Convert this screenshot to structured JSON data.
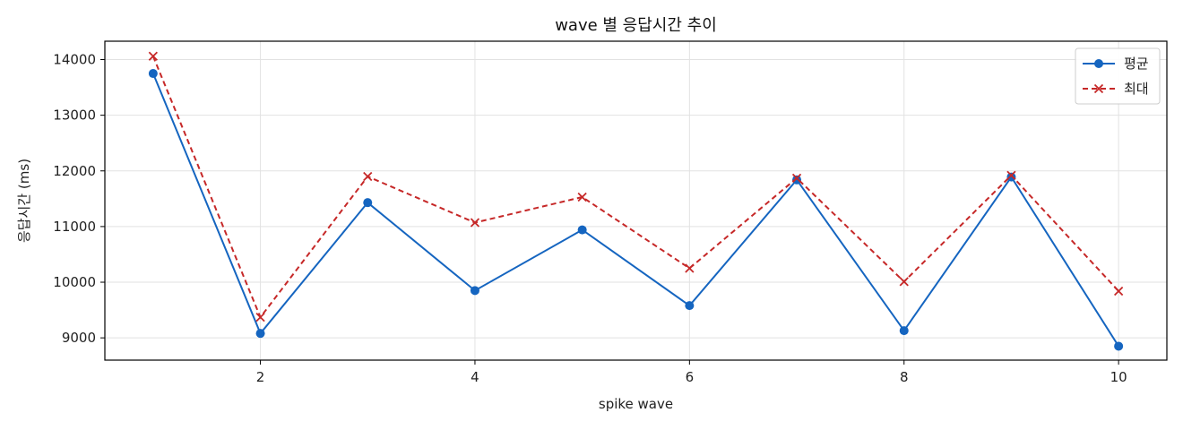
{
  "chart_data": {
    "type": "line",
    "title": "wave 별 응답시간 추이",
    "xlabel": "spike wave",
    "ylabel": "응답시간 (ms)",
    "x": [
      1,
      2,
      3,
      4,
      5,
      6,
      7,
      8,
      9,
      10
    ],
    "xlim": [
      0.55,
      10.45
    ],
    "ylim": [
      8600,
      14330
    ],
    "xticks": [
      2,
      4,
      6,
      8,
      10
    ],
    "yticks": [
      9000,
      10000,
      11000,
      12000,
      13000,
      14000
    ],
    "grid": true,
    "legend_position": "top-right",
    "series": [
      {
        "name": "평균",
        "color": "#1565c0",
        "line_style": "solid",
        "marker": "circle",
        "values": [
          13750,
          9080,
          11430,
          9850,
          10940,
          9580,
          11840,
          9130,
          11890,
          8850
        ]
      },
      {
        "name": "최대",
        "color": "#c62828",
        "line_style": "dashed",
        "marker": "x",
        "values": [
          14060,
          9370,
          11900,
          11070,
          11530,
          10250,
          11870,
          10010,
          11920,
          9840
        ]
      }
    ]
  }
}
